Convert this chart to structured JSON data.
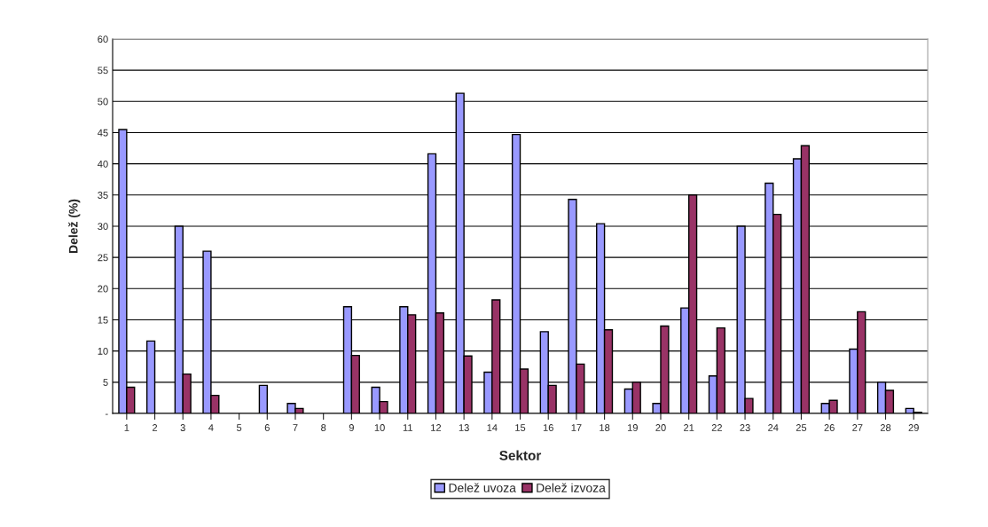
{
  "chart_data": {
    "type": "bar",
    "xlabel": "Sektor",
    "ylabel": "Delež (%)",
    "categories": [
      "1",
      "2",
      "3",
      "4",
      "5",
      "6",
      "7",
      "8",
      "9",
      "10",
      "11",
      "12",
      "13",
      "14",
      "15",
      "16",
      "17",
      "18",
      "19",
      "20",
      "21",
      "22",
      "23",
      "24",
      "25",
      "26",
      "27",
      "28",
      "29"
    ],
    "series": [
      {
        "name": "Delež uvoza",
        "color": "#9999ff",
        "values": [
          45.5,
          11.6,
          30,
          26,
          null,
          4.5,
          1.6,
          null,
          17.1,
          4.2,
          17.1,
          41.6,
          51.3,
          6.6,
          44.7,
          13.1,
          34.3,
          30.4,
          3.9,
          1.6,
          16.9,
          6.0,
          30,
          36.9,
          40.8,
          1.6,
          10.3,
          5.0,
          0.8
        ]
      },
      {
        "name": "Delež izvoza",
        "color": "#993366",
        "values": [
          4.2,
          null,
          6.3,
          2.9,
          null,
          null,
          0.8,
          null,
          9.3,
          1.9,
          15.8,
          16.1,
          9.2,
          18.2,
          7.1,
          4.5,
          7.9,
          13.4,
          5.0,
          14.0,
          35.0,
          13.7,
          2.4,
          31.9,
          42.9,
          2.1,
          16.3,
          3.7,
          0.2
        ]
      }
    ],
    "ylim": [
      0,
      60
    ],
    "yticks": [
      {
        "value": 0,
        "label": "-"
      },
      5,
      10,
      15,
      20,
      25,
      30,
      35,
      40,
      45,
      50,
      55,
      60
    ],
    "grid": "y",
    "legend": "bottom"
  }
}
